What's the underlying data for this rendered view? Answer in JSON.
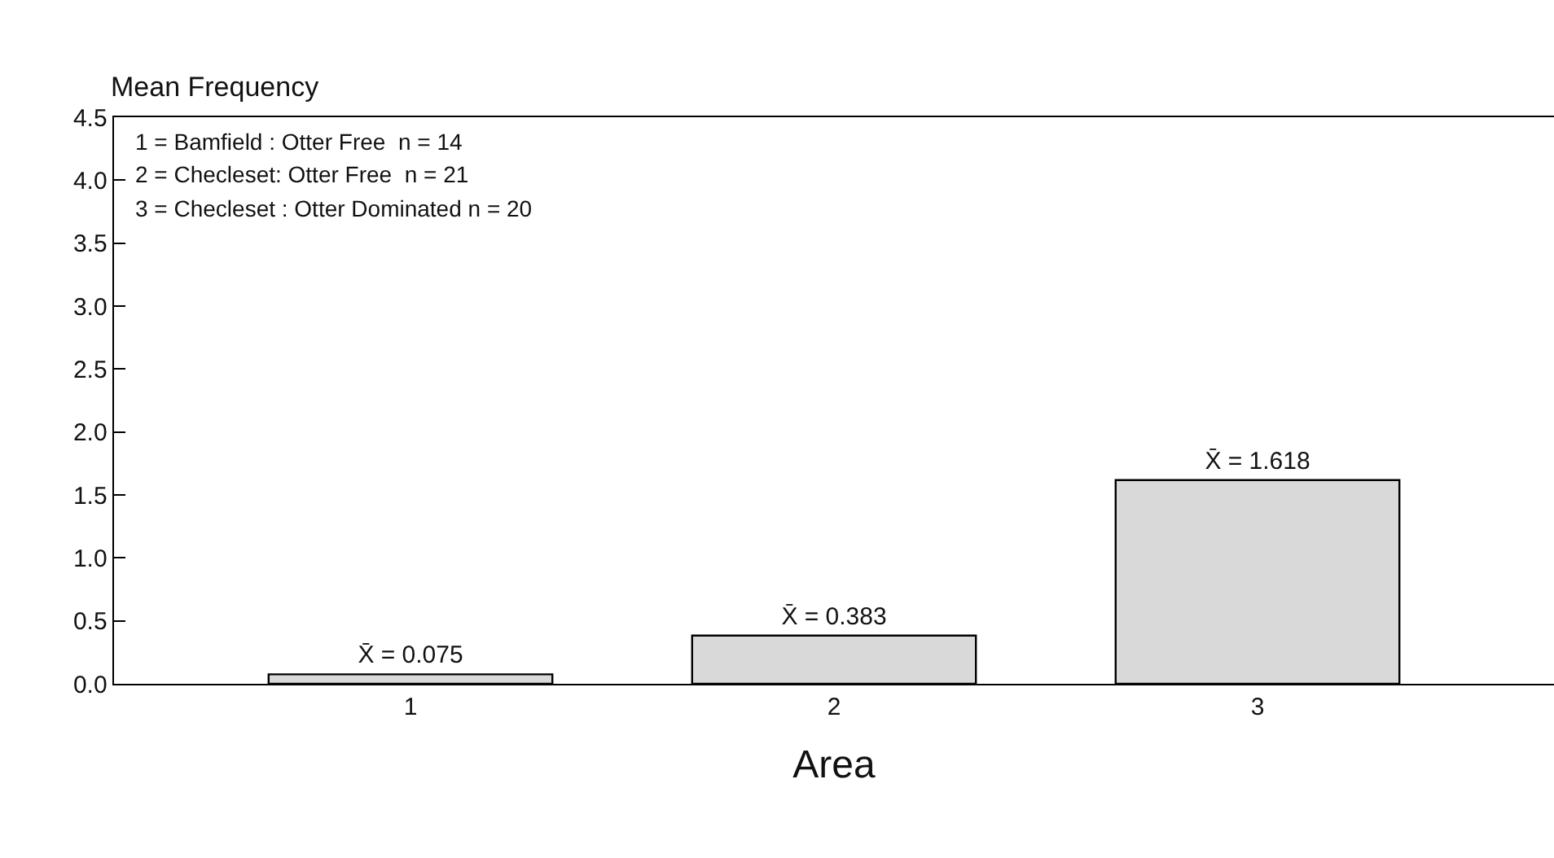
{
  "chart_data": {
    "type": "bar",
    "ylabel": "Mean Frequency",
    "xlabel": "Area",
    "categories": [
      "1",
      "2",
      "3"
    ],
    "values": [
      0.075,
      0.383,
      1.618
    ],
    "color": "#d9d9d9",
    "value_labels": [
      "X̄ = 0.075",
      "X̄ = 0.383",
      "X̄ = 1.618"
    ],
    "ylim": [
      0,
      4.5
    ],
    "yticks": [
      {
        "value": 0,
        "label": "0.0"
      },
      0.5,
      {
        "value": 1,
        "label": "1.0"
      },
      1.5,
      {
        "value": 2,
        "label": "2.0"
      },
      2.5,
      {
        "value": 3,
        "label": "3.0"
      },
      3.5,
      {
        "value": 4,
        "label": "4.0"
      },
      4.5
    ],
    "annotations": [
      "1 = Bamfield : Otter Free  n = 14",
      "2 = Checleset: Otter Free  n = 21",
      "3 = Checleset : Otter Dominated n = 20"
    ],
    "grid": false
  }
}
